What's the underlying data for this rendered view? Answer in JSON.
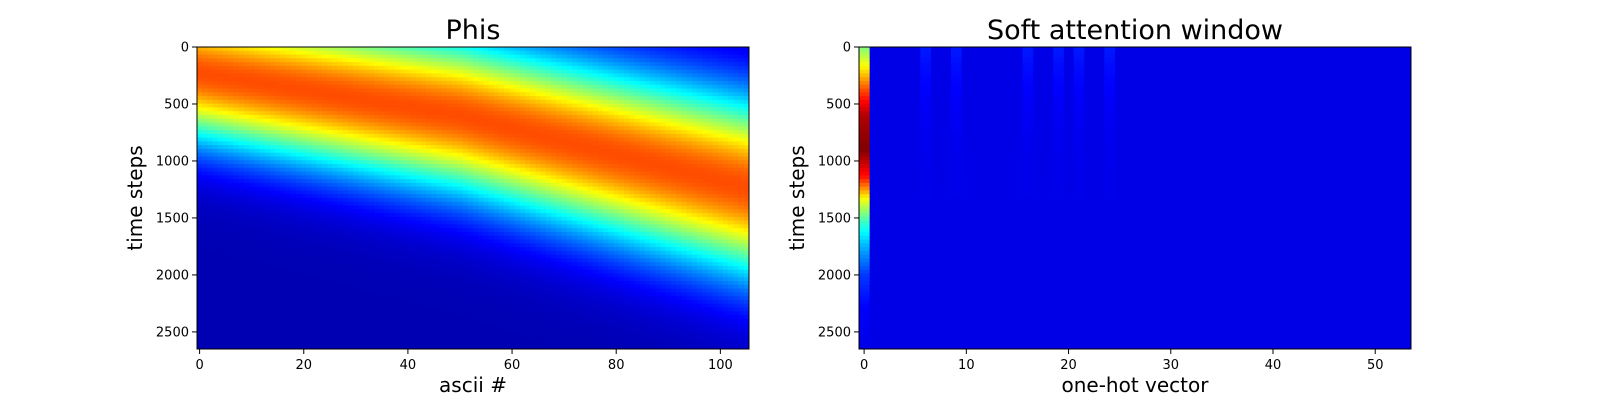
{
  "chart_data": [
    {
      "type": "heatmap",
      "title": "Phis",
      "xlabel": "ascii #",
      "ylabel": "time steps",
      "colormap": "jet",
      "xlim": [
        -0.5,
        105.5
      ],
      "ylim": [
        2650,
        0
      ],
      "xticks": [
        0,
        20,
        40,
        60,
        80,
        100
      ],
      "yticks": [
        0,
        500,
        1000,
        1500,
        2000,
        2500
      ],
      "band": {
        "description_points": [
          {
            "x": 0,
            "y_center": 230
          },
          {
            "x": 50,
            "y_center": 600
          },
          {
            "x": 105,
            "y_center": 1230
          }
        ],
        "peak_value": 0.8
      }
    },
    {
      "type": "heatmap",
      "title": "Soft attention window",
      "xlabel": "one-hot vector",
      "ylabel": "time steps",
      "colormap": "jet",
      "xlim": [
        -0.5,
        53.5
      ],
      "ylim": [
        2650,
        0
      ],
      "xticks": [
        0,
        10,
        20,
        30,
        40,
        50
      ],
      "yticks": [
        0,
        500,
        1000,
        1500,
        2000,
        2500
      ],
      "column0_profile": [
        {
          "y": 0,
          "v": 0.5
        },
        {
          "y": 200,
          "v": 0.65
        },
        {
          "y": 400,
          "v": 0.82
        },
        {
          "y": 600,
          "v": 0.95
        },
        {
          "y": 900,
          "v": 1.0
        },
        {
          "y": 1150,
          "v": 0.85
        },
        {
          "y": 1350,
          "v": 0.6
        },
        {
          "y": 1550,
          "v": 0.42
        },
        {
          "y": 1750,
          "v": 0.3
        },
        {
          "y": 2000,
          "v": 0.18
        },
        {
          "y": 2300,
          "v": 0.12
        },
        {
          "y": 2650,
          "v": 0.1
        }
      ],
      "faint_columns": [
        6,
        9,
        16,
        19,
        21,
        24
      ]
    }
  ]
}
